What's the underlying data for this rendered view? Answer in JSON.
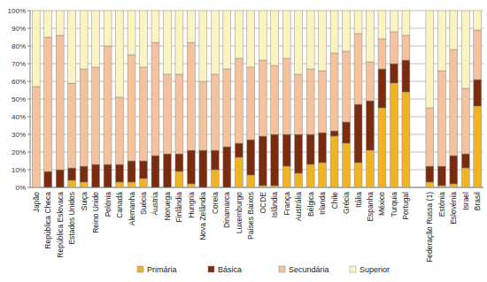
{
  "chart_data": {
    "type": "bar",
    "stacked": true,
    "grid": true,
    "legend": "bottom",
    "categories": [
      "Japão",
      "República Checa",
      "República Eslovaca",
      "Estados Unidos",
      "Suiça",
      "Reino Unido",
      "Polónia",
      "Canadá",
      "Alemanha",
      "Suécia",
      "Áustria",
      "Noruega",
      "Finlândia",
      "Hungria",
      "Nova Zelândia",
      "Coreia",
      "Dinamarca",
      "Luxemburgo",
      "Países Baixos",
      "OCDE",
      "Islândia",
      "França",
      "Austrália",
      "Bélgica",
      "Irlanda",
      "Chile",
      "Grécia",
      "Itália",
      "Espanha",
      "México",
      "Turquia",
      "Portugal",
      null,
      "Federação Russa (1)",
      "Estónia",
      "Eslovénia",
      "Israel",
      "Brasil"
    ],
    "series": [
      {
        "name": "Primária",
        "color": "#f0b323",
        "values": [
          0,
          0,
          0,
          4,
          3,
          0,
          0,
          3,
          3,
          5,
          0,
          0,
          9,
          2,
          0,
          10,
          0,
          17,
          7,
          1,
          1,
          12,
          8,
          13,
          14,
          29,
          25,
          14,
          21,
          45,
          59,
          54,
          null,
          3,
          1,
          2,
          11,
          46
        ]
      },
      {
        "name": "Básica",
        "color": "#7b2c0e",
        "values": [
          0,
          9,
          10,
          7,
          9,
          13,
          13,
          10,
          12,
          10,
          18,
          19,
          10,
          19,
          21,
          11,
          23,
          8,
          20,
          28,
          29,
          18,
          22,
          17,
          17,
          3,
          12,
          33,
          28,
          22,
          11,
          18,
          null,
          9,
          11,
          16,
          8,
          15
        ]
      },
      {
        "name": "Secundária",
        "color": "#f4c29c",
        "values": [
          57,
          76,
          76,
          48,
          55,
          55,
          67,
          38,
          60,
          53,
          64,
          45,
          45,
          61,
          39,
          43,
          44,
          48,
          41,
          43,
          39,
          43,
          34,
          37,
          35,
          44,
          40,
          40,
          22,
          17,
          18,
          14,
          null,
          33,
          54,
          60,
          37,
          28
        ]
      },
      {
        "name": "Superior",
        "color": "#fbf4c0",
        "values": [
          43,
          15,
          14,
          41,
          33,
          32,
          20,
          49,
          25,
          32,
          18,
          36,
          36,
          18,
          40,
          36,
          33,
          27,
          32,
          28,
          31,
          27,
          36,
          33,
          34,
          24,
          23,
          13,
          29,
          16,
          12,
          14,
          null,
          55,
          34,
          22,
          44,
          11
        ]
      }
    ],
    "ylim": [
      0,
      100
    ],
    "yticks": [
      {
        "value": 0,
        "label": "0%"
      },
      {
        "value": 10,
        "label": "10%"
      },
      {
        "value": 20,
        "label": "20%"
      },
      {
        "value": 30,
        "label": "30%"
      },
      {
        "value": 40,
        "label": "40%"
      },
      {
        "value": 50,
        "label": "50%"
      },
      {
        "value": 60,
        "label": "60%"
      },
      {
        "value": 70,
        "label": "70%"
      },
      {
        "value": 80,
        "label": "80%"
      },
      {
        "value": 90,
        "label": "90%"
      },
      {
        "value": 100,
        "label": "100%"
      }
    ]
  }
}
